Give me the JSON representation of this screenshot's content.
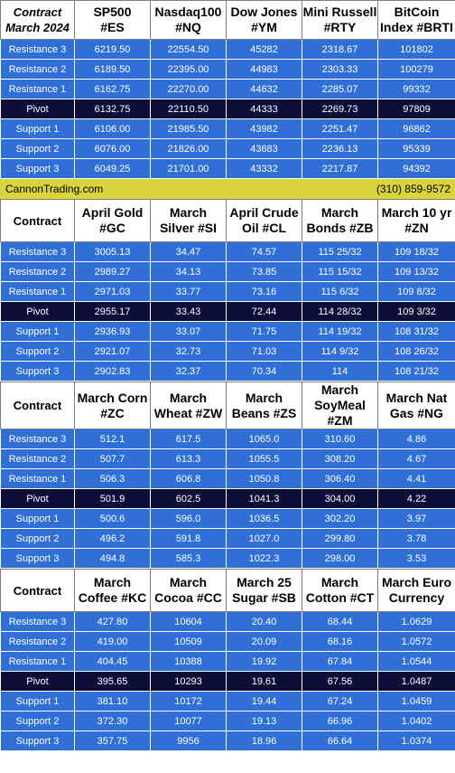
{
  "banner": {
    "site": "CannonTrading.com",
    "phone": "(310) 859-9572"
  },
  "tables": [
    {
      "corner": [
        "Contract",
        "March 2024"
      ],
      "headers": [
        [
          "SP500",
          "#ES"
        ],
        [
          "Nasdaq100",
          "#NQ"
        ],
        [
          "Dow Jones",
          "#YM"
        ],
        [
          "Mini Russell",
          "#RTY"
        ],
        [
          "BitCoin",
          "Index #BRTI"
        ]
      ],
      "rows": [
        {
          "label": "Resistance 3",
          "values": [
            "6219.50",
            "22554.50",
            "45282",
            "2318.67",
            "101802"
          ]
        },
        {
          "label": "Resistance 2",
          "values": [
            "6189.50",
            "22395.00",
            "44983",
            "2303.33",
            "100279"
          ]
        },
        {
          "label": "Resistance 1",
          "values": [
            "6162.75",
            "22270.00",
            "44632",
            "2285.07",
            "99332"
          ]
        },
        {
          "label": "Pivot",
          "values": [
            "6132.75",
            "22110.50",
            "44333",
            "2269.73",
            "97809"
          ]
        },
        {
          "label": "Support 1",
          "values": [
            "6106.00",
            "21985.50",
            "43982",
            "2251.47",
            "96862"
          ]
        },
        {
          "label": "Support 2",
          "values": [
            "6076.00",
            "21826.00",
            "43683",
            "2236.13",
            "95339"
          ]
        },
        {
          "label": "Support 3",
          "values": [
            "6049.25",
            "21701.00",
            "43332",
            "2217.87",
            "94392"
          ]
        }
      ]
    },
    {
      "corner": [
        "Contract"
      ],
      "headers": [
        [
          "April Gold",
          "#GC"
        ],
        [
          "March",
          "Silver #SI"
        ],
        [
          "April Crude",
          "Oil #CL"
        ],
        [
          "March",
          "Bonds  #ZB"
        ],
        [
          "March 10 yr",
          "#ZN"
        ]
      ],
      "rows": [
        {
          "label": "Resistance 3",
          "values": [
            "3005.13",
            "34.47",
            "74.57",
            "115 25/32",
            "109 18/32"
          ]
        },
        {
          "label": "Resistance 2",
          "values": [
            "2989.27",
            "34.13",
            "73.85",
            "115 15/32",
            "109 13/32"
          ]
        },
        {
          "label": "Resistance 1",
          "values": [
            "2971.03",
            "33.77",
            "73.16",
            "115  6/32",
            "109  8/32"
          ]
        },
        {
          "label": "Pivot",
          "values": [
            "2955.17",
            "33.43",
            "72.44",
            "114 28/32",
            "109  3/32"
          ]
        },
        {
          "label": "Support 1",
          "values": [
            "2936.93",
            "33.07",
            "71.75",
            "114 19/32",
            "108 31/32"
          ]
        },
        {
          "label": "Support 2",
          "values": [
            "2921.07",
            "32.73",
            "71.03",
            "114  9/32",
            "108 26/32"
          ]
        },
        {
          "label": "Support 3",
          "values": [
            "2902.83",
            "32.37",
            "70.34",
            "114",
            "108 21/32"
          ]
        }
      ]
    },
    {
      "corner": [
        "Contract"
      ],
      "headers": [
        [
          "March Corn",
          "#ZC"
        ],
        [
          "March",
          "Wheat #ZW"
        ],
        [
          "March",
          "Beans #ZS"
        ],
        [
          "March",
          "SoyMeal",
          "#ZM"
        ],
        [
          "March Nat",
          "Gas #NG"
        ]
      ],
      "rows": [
        {
          "label": "Resistance 3",
          "values": [
            "512.1",
            "617.5",
            "1065.0",
            "310.60",
            "4.86"
          ]
        },
        {
          "label": "Resistance 2",
          "values": [
            "507.7",
            "613.3",
            "1055.5",
            "308.20",
            "4.67"
          ]
        },
        {
          "label": "Resistance 1",
          "values": [
            "506.3",
            "606.8",
            "1050.8",
            "306.40",
            "4.41"
          ]
        },
        {
          "label": "Pivot",
          "values": [
            "501.9",
            "602.5",
            "1041.3",
            "304.00",
            "4.22"
          ]
        },
        {
          "label": "Support 1",
          "values": [
            "500.6",
            "596.0",
            "1036.5",
            "302.20",
            "3.97"
          ]
        },
        {
          "label": "Support 2",
          "values": [
            "496.2",
            "591.8",
            "1027.0",
            "299.80",
            "3.78"
          ]
        },
        {
          "label": "Support 3",
          "values": [
            "494.8",
            "585.3",
            "1022.3",
            "298.00",
            "3.53"
          ]
        }
      ]
    },
    {
      "corner": [
        "Contract"
      ],
      "headers": [
        [
          "March",
          "Coffee #KC"
        ],
        [
          "March",
          "Cocoa #CC"
        ],
        [
          "March 25",
          "Sugar #SB"
        ],
        [
          "March",
          "Cotton #CT"
        ],
        [
          "March Euro",
          "Currency"
        ]
      ],
      "rows": [
        {
          "label": "Resistance 3",
          "values": [
            "427.80",
            "10604",
            "20.40",
            "68.44",
            "1.0629"
          ]
        },
        {
          "label": "Resistance 2",
          "values": [
            "419.00",
            "10509",
            "20.09",
            "68.16",
            "1.0572"
          ]
        },
        {
          "label": "Resistance 1",
          "values": [
            "404.45",
            "10388",
            "19.92",
            "67.84",
            "1.0544"
          ]
        },
        {
          "label": "Pivot",
          "values": [
            "395.65",
            "10293",
            "19.61",
            "67.56",
            "1.0487"
          ]
        },
        {
          "label": "Support 1",
          "values": [
            "381.10",
            "10172",
            "19.44",
            "67.24",
            "1.0459"
          ]
        },
        {
          "label": "Support 2",
          "values": [
            "372.30",
            "10077",
            "19.13",
            "66.96",
            "1.0402"
          ]
        },
        {
          "label": "Support 3",
          "values": [
            "357.75",
            "9956",
            "18.96",
            "66.64",
            "1.0374"
          ]
        }
      ]
    }
  ]
}
